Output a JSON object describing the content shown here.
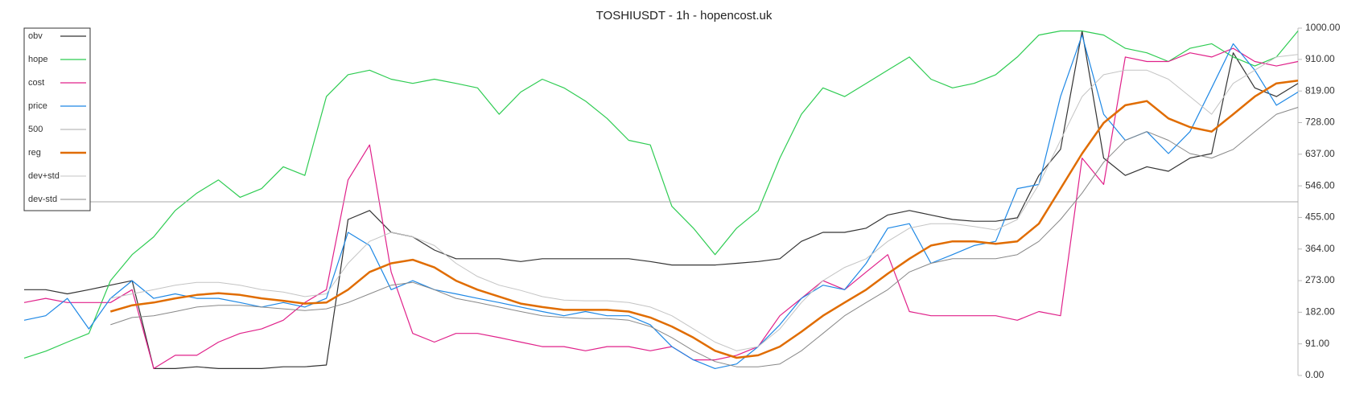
{
  "chart_data": {
    "type": "line",
    "title": "TOSHIUSDT - 1h - hopencost.uk",
    "ylim": [
      0,
      1000
    ],
    "yticks": [
      {
        "value": 0,
        "label": "0.00"
      },
      {
        "value": 91,
        "label": "91.00"
      },
      {
        "value": 182,
        "label": "182.00"
      },
      {
        "value": 273,
        "label": "273.00"
      },
      {
        "value": 364,
        "label": "364.00"
      },
      {
        "value": 455,
        "label": "455.00"
      },
      {
        "value": 546,
        "label": "546.00"
      },
      {
        "value": 637,
        "label": "637.00"
      },
      {
        "value": 728,
        "label": "728.00"
      },
      {
        "value": 819,
        "label": "819.00"
      },
      {
        "value": 910,
        "label": "910.00"
      },
      {
        "value": 1000,
        "label": "1000.00"
      }
    ],
    "legend": "top-left",
    "series": [
      {
        "name": "obv",
        "color": "#333333",
        "width": 1.2,
        "values": [
          247,
          247,
          235,
          247,
          260,
          273,
          20,
          20,
          25,
          20,
          20,
          20,
          25,
          25,
          30,
          449,
          475,
          412,
          399,
          361,
          336,
          336,
          336,
          328,
          336,
          336,
          336,
          336,
          336,
          328,
          318,
          318,
          318,
          323,
          328,
          336,
          386,
          412,
          412,
          424,
          462,
          475,
          462,
          449,
          444,
          444,
          454,
          576,
          651,
          992,
          626,
          576,
          601,
          588,
          626,
          639,
          929,
          828,
          803,
          841
        ]
      },
      {
        "name": "hope",
        "color": "#2ecc52",
        "width": 1.2,
        "values": [
          50,
          70,
          96,
          121,
          273,
          348,
          399,
          475,
          525,
          563,
          513,
          538,
          601,
          576,
          803,
          866,
          879,
          853,
          841,
          853,
          841,
          828,
          752,
          816,
          853,
          828,
          790,
          740,
          677,
          664,
          487,
          424,
          348,
          424,
          475,
          626,
          752,
          828,
          803,
          841,
          879,
          917,
          853,
          828,
          841,
          866,
          917,
          980,
          992,
          992,
          980,
          942,
          929,
          904,
          942,
          955,
          917,
          891,
          917,
          992
        ]
      },
      {
        "name": "cost",
        "color": "#e0218a",
        "width": 1.2,
        "values": [
          210,
          222,
          210,
          210,
          210,
          247,
          20,
          58,
          58,
          96,
          121,
          134,
          159,
          210,
          247,
          563,
          664,
          298,
          121,
          96,
          121,
          121,
          109,
          96,
          83,
          83,
          71,
          83,
          83,
          71,
          83,
          45,
          45,
          58,
          83,
          172,
          222,
          273,
          247,
          298,
          348,
          184,
          172,
          172,
          172,
          172,
          159,
          184,
          172,
          626,
          550,
          917,
          904,
          904,
          929,
          917,
          942,
          904,
          891,
          904
        ]
      },
      {
        "name": "price",
        "color": "#1e88e5",
        "width": 1.2,
        "values": [
          159,
          172,
          222,
          134,
          222,
          273,
          222,
          235,
          222,
          222,
          210,
          197,
          210,
          197,
          222,
          412,
          374,
          247,
          273,
          247,
          235,
          222,
          210,
          197,
          184,
          172,
          184,
          172,
          172,
          146,
          83,
          45,
          20,
          33,
          83,
          146,
          222,
          260,
          247,
          323,
          424,
          437,
          323,
          348,
          374,
          386,
          538,
          550,
          803,
          980,
          752,
          677,
          702,
          639,
          702,
          828,
          955,
          879,
          778,
          816
        ]
      },
      {
        "name": "500",
        "color": "#aaaaaa",
        "width": 1,
        "values": [
          500,
          500,
          500,
          500,
          500,
          500,
          500,
          500,
          500,
          500,
          500,
          500,
          500,
          500,
          500,
          500,
          500,
          500,
          500,
          500,
          500,
          500,
          500,
          500,
          500,
          500,
          500,
          500,
          500,
          500,
          500,
          500,
          500,
          500,
          500,
          500,
          500,
          500,
          500,
          500,
          500,
          500,
          500,
          500,
          500,
          500,
          500,
          500,
          500,
          500,
          500,
          500,
          500,
          500,
          500,
          500,
          500,
          500,
          500,
          500
        ]
      },
      {
        "name": "reg",
        "color": "#e06c00",
        "width": 2.5,
        "values": [
          null,
          null,
          null,
          null,
          184,
          202,
          210,
          222,
          232,
          237,
          232,
          222,
          215,
          207,
          210,
          247,
          298,
          323,
          333,
          311,
          273,
          247,
          227,
          207,
          197,
          189,
          189,
          189,
          184,
          167,
          141,
          109,
          71,
          51,
          58,
          83,
          126,
          172,
          210,
          247,
          293,
          336,
          374,
          386,
          386,
          379,
          386,
          437,
          538,
          639,
          727,
          778,
          790,
          740,
          715,
          702,
          752,
          803,
          841,
          849
        ]
      },
      {
        "name": "dev+std",
        "color": "#c4c4c4",
        "width": 1,
        "values": [
          null,
          null,
          null,
          null,
          222,
          235,
          247,
          260,
          268,
          268,
          260,
          247,
          240,
          227,
          235,
          323,
          386,
          412,
          399,
          374,
          323,
          285,
          260,
          245,
          227,
          217,
          215,
          215,
          210,
          197,
          172,
          134,
          96,
          71,
          83,
          134,
          210,
          273,
          311,
          336,
          386,
          424,
          437,
          437,
          429,
          419,
          449,
          550,
          677,
          803,
          866,
          879,
          879,
          853,
          803,
          752,
          841,
          879,
          917,
          924
        ]
      },
      {
        "name": "dev-std",
        "color": "#888888",
        "width": 1,
        "values": [
          null,
          null,
          null,
          null,
          146,
          167,
          172,
          184,
          197,
          202,
          202,
          197,
          192,
          187,
          192,
          210,
          235,
          260,
          268,
          247,
          222,
          210,
          197,
          184,
          172,
          167,
          164,
          164,
          159,
          141,
          109,
          71,
          40,
          25,
          25,
          33,
          71,
          121,
          172,
          210,
          247,
          298,
          323,
          336,
          336,
          336,
          348,
          386,
          449,
          525,
          614,
          677,
          702,
          677,
          639,
          626,
          651,
          702,
          752,
          772
        ]
      }
    ]
  }
}
